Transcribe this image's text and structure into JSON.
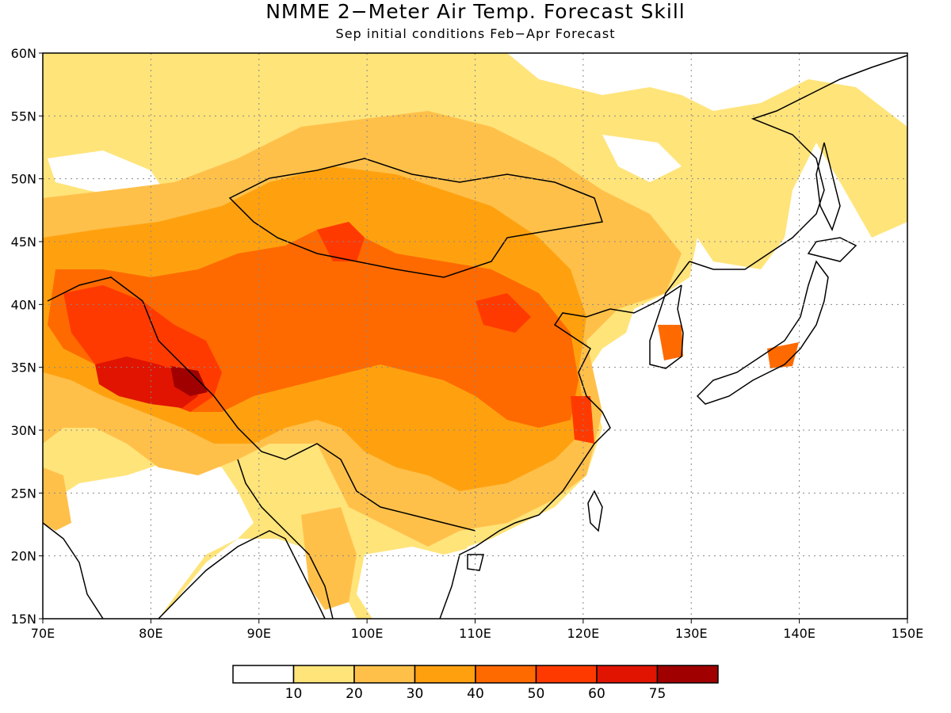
{
  "title": "NMME 2−Meter Air Temp. Forecast Skill",
  "subtitle": "Sep initial conditions  Feb−Apr Forecast",
  "map": {
    "lon_range": [
      70,
      150
    ],
    "lat_range": [
      15,
      60
    ],
    "x_ticks": [
      "70E",
      "80E",
      "90E",
      "100E",
      "110E",
      "120E",
      "130E",
      "140E",
      "150E"
    ],
    "y_ticks": [
      "15N",
      "20N",
      "25N",
      "30N",
      "35N",
      "40N",
      "45N",
      "50N",
      "55N",
      "60N"
    ],
    "grid": "dotted"
  },
  "legend": {
    "bins": [
      "#ffffff",
      "#ffe47a",
      "#ffc04a",
      "#ffa10f",
      "#ff6a00",
      "#ff3a00",
      "#e01400",
      "#a10000"
    ],
    "labels": [
      "10",
      "20",
      "30",
      "40",
      "50",
      "60",
      "75"
    ]
  },
  "colors": {
    "skill_10_20": "#ffe47a",
    "skill_20_30": "#ffc04a",
    "skill_30_40": "#ffa10f",
    "skill_40_50": "#ff6a00",
    "skill_50_60": "#ff3a00",
    "skill_60_75": "#e01400",
    "skill_75_plus": "#a10000",
    "coastline": "#000000"
  }
}
